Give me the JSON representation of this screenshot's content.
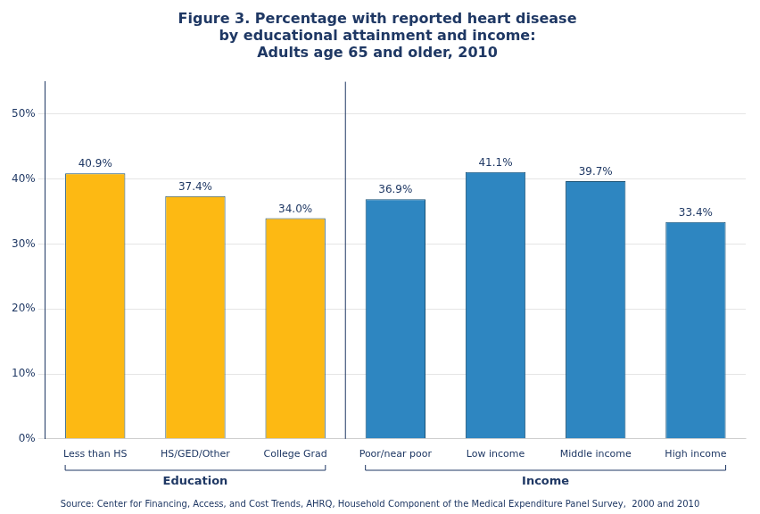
{
  "chart_data": {
    "type": "bar",
    "title": "Figure 3. Percentage with reported heart disease\nby educational attainment and income:\nAdults age 65 and older, 2010",
    "categories": [
      "Less than HS",
      "HS/GED/Other",
      "College Grad",
      "Poor/near poor",
      "Low income",
      "Middle income",
      "High income"
    ],
    "values": [
      40.9,
      37.4,
      34.0,
      36.9,
      41.1,
      39.7,
      33.4
    ],
    "value_labels": [
      "40.9%",
      "37.4%",
      "34.0%",
      "36.9%",
      "41.1%",
      "39.7%",
      "33.4%"
    ],
    "data_labels": true,
    "colors": [
      "#FDB913",
      "#FDB913",
      "#FDB913",
      "#2E86C1",
      "#2E86C1",
      "#2E86C1",
      "#2E86C1"
    ],
    "ylim": [
      0,
      55
    ],
    "yticks": [
      {
        "value": 0,
        "label": "0%"
      },
      {
        "value": 10,
        "label": "10%"
      },
      {
        "value": 20,
        "label": "20%"
      },
      {
        "value": 30,
        "label": "30%"
      },
      {
        "value": 40,
        "label": "40%"
      },
      {
        "value": 50,
        "label": "50%"
      }
    ],
    "grid": true,
    "annotations": [
      "Education",
      "Income",
      "Source: Center for Financing, Access, and Cost Trends, AHRQ, Household Component of the Medical Expenditure Panel Survey,  2000 and 2010"
    ]
  }
}
